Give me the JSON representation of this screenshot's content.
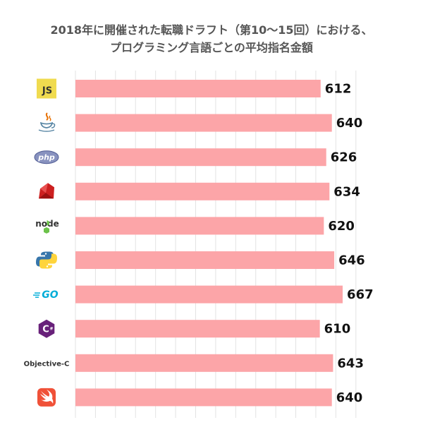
{
  "title_line1": "2018年に開催された転職ドラフト（第10〜15回）における、",
  "title_line2": "プログラミング言語ごとの平均指名金額",
  "bar_color": "#fca5a8",
  "grid_color": "#e3e3e3",
  "chart_data": {
    "type": "bar",
    "orientation": "horizontal",
    "categories": [
      "JavaScript",
      "Java",
      "PHP",
      "Ruby",
      "Node.js",
      "Python",
      "Go",
      "C#",
      "Objective-C",
      "Swift"
    ],
    "category_display": [
      "js-logo",
      "java-logo",
      "php-logo",
      "ruby-logo",
      "nodejs-logo",
      "python-logo",
      "go-logo",
      "csharp-logo",
      "Objective-C",
      "swift-logo"
    ],
    "values": [
      612,
      640,
      626,
      634,
      620,
      646,
      667,
      610,
      643,
      640
    ],
    "xlim": [
      0,
      700
    ],
    "grid": true,
    "legend": "none"
  }
}
